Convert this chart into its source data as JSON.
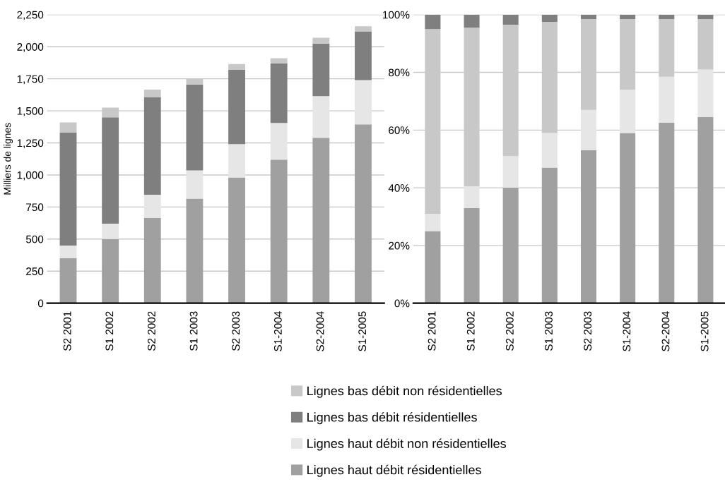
{
  "chart_data": [
    {
      "type": "bar",
      "stacked": true,
      "ylabel": "Milliers de lignes",
      "categories": [
        "S2 2001",
        "S1 2002",
        "S2 2002",
        "S1 2003",
        "S2 2003",
        "S1-2004",
        "S2-2004",
        "S1-2005"
      ],
      "series": [
        {
          "name": "Lignes haut débit résidentielles",
          "color": "#a0a0a0",
          "values": [
            350,
            500,
            665,
            815,
            980,
            1120,
            1290,
            1395
          ]
        },
        {
          "name": "Lignes haut débit non résidentielles",
          "color": "#e6e6e6",
          "values": [
            100,
            120,
            180,
            220,
            260,
            285,
            325,
            345
          ]
        },
        {
          "name": "Lignes bas débit résidentielles",
          "color": "#7f7f7f",
          "values": [
            880,
            830,
            760,
            670,
            580,
            465,
            410,
            380
          ]
        },
        {
          "name": "Lignes bas débit non résidentielles",
          "color": "#c8c8c8",
          "values": [
            80,
            75,
            60,
            45,
            45,
            40,
            45,
            40
          ]
        }
      ],
      "ylim": [
        0,
        2250
      ],
      "yticks": [
        0,
        250,
        500,
        750,
        {
          "value": 1000,
          "label": "1,000"
        },
        {
          "value": 1250,
          "label": "1,250"
        },
        {
          "value": 1500,
          "label": "1,500"
        },
        {
          "value": 1750,
          "label": "1,750"
        },
        {
          "value": 2000,
          "label": "2,000"
        },
        {
          "value": 2250,
          "label": "2,250"
        }
      ],
      "grid": "y",
      "legend": "bottom"
    },
    {
      "type": "bar",
      "stacked": true,
      "categories": [
        "S2 2001",
        "S1 2002",
        "S2 2002",
        "S1 2003",
        "S2 2003",
        "S1-2004",
        "S2-2004",
        "S1-2005"
      ],
      "series": [
        {
          "color": "#a0a0a0",
          "values": [
            25,
            33,
            40,
            47,
            53,
            59,
            62.5,
            64.5
          ]
        },
        {
          "color": "#e6e6e6",
          "values": [
            6,
            7.5,
            11,
            12,
            14,
            15,
            16,
            16.5
          ]
        },
        {
          "color": "#c8c8c8",
          "values": [
            64,
            55,
            45.5,
            38.5,
            31.5,
            24.5,
            20,
            17.5
          ]
        },
        {
          "color": "#7f7f7f",
          "values": [
            5,
            4.5,
            3.5,
            2.5,
            1.5,
            1.5,
            1.5,
            1.5
          ]
        }
      ],
      "ylim": [
        0,
        100
      ],
      "yticks": [
        {
          "value": 0,
          "label": "0%"
        },
        {
          "value": 20,
          "label": "20%"
        },
        {
          "value": 40,
          "label": "40%"
        },
        {
          "value": 60,
          "label": "60%"
        },
        {
          "value": 80,
          "label": "80%"
        },
        {
          "value": 100,
          "label": "100%"
        }
      ],
      "grid": "y"
    }
  ]
}
